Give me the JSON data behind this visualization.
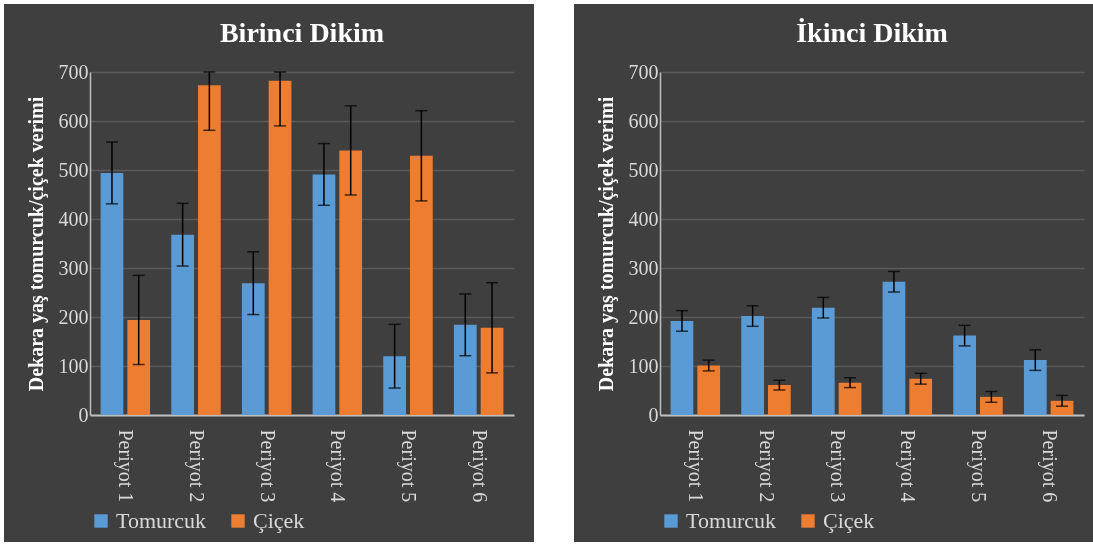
{
  "chart_data": [
    {
      "type": "bar",
      "title": "Birinci Dikim",
      "ylabel": "Dekara yaş tomurcuk/çiçek verimi",
      "categories": [
        "Periyot 1",
        "Periyot 2",
        "Periyot 3",
        "Periyot 4",
        "Periyot 5",
        "Periyot 6"
      ],
      "series": [
        {
          "name": "Tomurcuk",
          "color": "#5b9bd5",
          "values": [
            494,
            368,
            269,
            491,
            120,
            184
          ],
          "errors": [
            63,
            64,
            64,
            63,
            65,
            63
          ]
        },
        {
          "name": "Çiçek",
          "color": "#ed7d31",
          "values": [
            194,
            673,
            682,
            540,
            529,
            178
          ],
          "errors": [
            91,
            [
              581,
              700
            ],
            [
              590,
              700
            ],
            91,
            92,
            92
          ]
        }
      ],
      "ylim": [
        0,
        700
      ],
      "yticks": [
        0,
        100,
        200,
        300,
        400,
        500,
        600,
        700
      ],
      "grid": "y",
      "legend": "bottom"
    },
    {
      "type": "bar",
      "title": "İkinci Dikim",
      "ylabel": "Dekara yaş tomurcuk/çiçek verimi",
      "categories": [
        "Periyot 1",
        "Periyot 2",
        "Periyot 3",
        "Periyot 4",
        "Periyot 5",
        "Periyot 6"
      ],
      "series": [
        {
          "name": "Tomurcuk",
          "color": "#5b9bd5",
          "values": [
            192,
            202,
            219,
            272,
            162,
            112
          ],
          "errors": [
            21,
            21,
            21,
            21,
            21,
            21
          ]
        },
        {
          "name": "Çiçek",
          "color": "#ed7d31",
          "values": [
            101,
            61,
            66,
            74,
            37,
            29
          ],
          "errors": [
            11,
            10,
            10,
            11,
            11,
            11
          ]
        }
      ],
      "ylim": [
        0,
        700
      ],
      "yticks": [
        0,
        100,
        200,
        300,
        400,
        500,
        600,
        700
      ],
      "grid": "y",
      "legend": "bottom"
    }
  ]
}
